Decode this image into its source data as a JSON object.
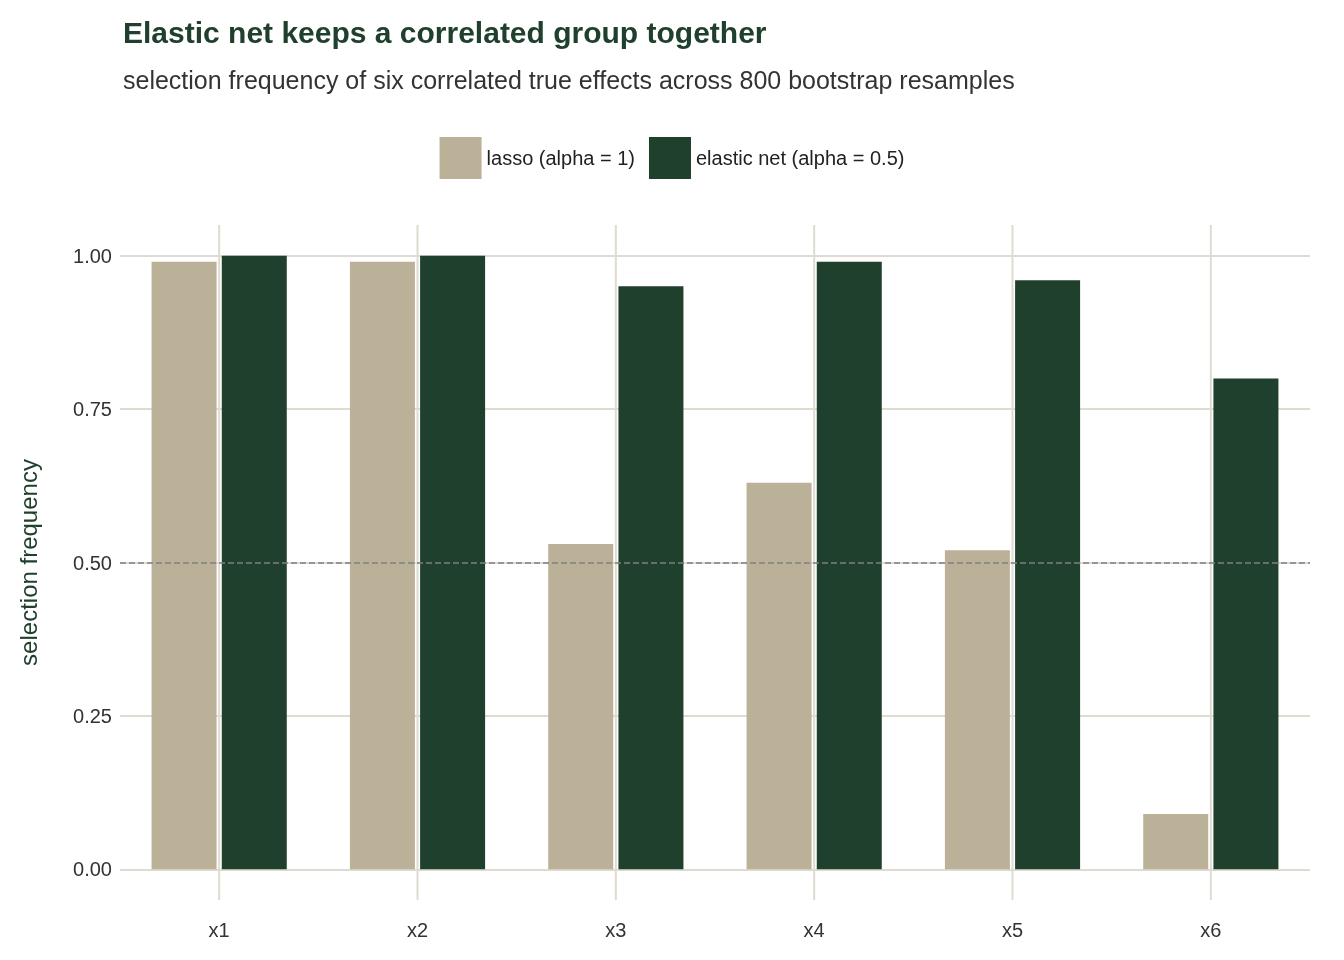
{
  "chart_data": {
    "type": "bar",
    "title": "Elastic net keeps a correlated group together",
    "subtitle": "selection frequency of six correlated true effects across 800 bootstrap resamples",
    "ylabel": "selection frequency",
    "categories": [
      "x1",
      "x2",
      "x3",
      "x4",
      "x5",
      "x6"
    ],
    "series": [
      {
        "name": "lasso (alpha = 1)",
        "color": "#bbb098",
        "values": [
          0.99,
          0.99,
          0.53,
          0.63,
          0.52,
          0.09
        ]
      },
      {
        "name": "elastic net (alpha = 0.5)",
        "color": "#20402e",
        "values": [
          1,
          1,
          0.95,
          0.99,
          0.96,
          0.8
        ]
      }
    ],
    "ylim": [
      -0.05,
      1.05
    ],
    "yticks": [
      {
        "value": 0,
        "label": "0.00"
      },
      {
        "value": 0.25,
        "label": "0.25"
      },
      {
        "value": 0.5,
        "label": "0.50"
      },
      {
        "value": 0.75,
        "label": "0.75"
      },
      {
        "value": 1,
        "label": "1.00"
      }
    ],
    "ref_lines": [
      {
        "axis": "y",
        "value": 0.5,
        "label": null,
        "color": "#808080",
        "line_style": "dashed"
      }
    ],
    "grid": true,
    "legend": "top"
  }
}
